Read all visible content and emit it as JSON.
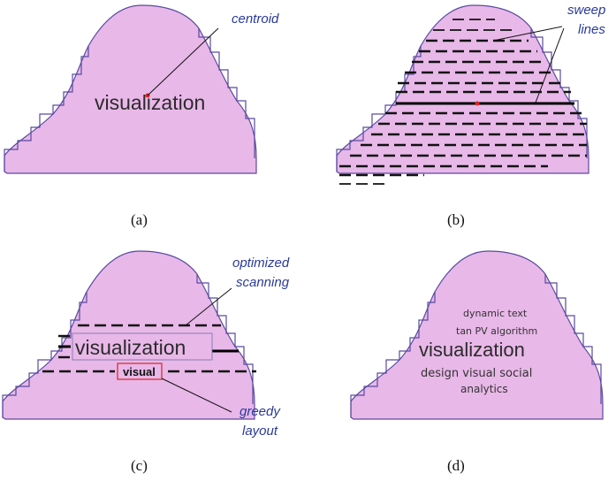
{
  "panels": {
    "a": {
      "caption": "(a)",
      "main_word": "visualization",
      "annotation": "centroid"
    },
    "b": {
      "caption": "(b)",
      "annotation_line1": "sweep",
      "annotation_line2": "lines"
    },
    "c": {
      "caption": "(c)",
      "main_word": "visualization",
      "placed_word": "visual",
      "annotation1_line1": "optimized",
      "annotation1_line2": "scanning",
      "annotation2_line1": "greedy",
      "annotation2_line2": "layout"
    },
    "d": {
      "caption": "(d)",
      "cloud": {
        "line1": "dynamic text",
        "line2": "tan PV algorithm",
        "main": "visualization",
        "line4": "design visual social",
        "line5": "analytics"
      }
    }
  },
  "colors": {
    "shape_fill": "#e8b8e8",
    "shape_stroke": "#5a4aa0",
    "annotation": "#2a3a9a",
    "centroid": "#e02020",
    "highlight_box": "#e02020"
  }
}
